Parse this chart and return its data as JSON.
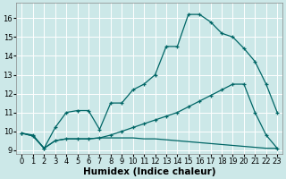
{
  "xlabel": "Humidex (Indice chaleur)",
  "background_color": "#cce8e8",
  "grid_color": "#ffffff",
  "line_color": "#006666",
  "xlim": [
    -0.5,
    23.5
  ],
  "ylim": [
    8.8,
    16.8
  ],
  "yticks": [
    9,
    10,
    11,
    12,
    13,
    14,
    15,
    16
  ],
  "xticks": [
    0,
    1,
    2,
    3,
    4,
    5,
    6,
    7,
    8,
    9,
    10,
    11,
    12,
    13,
    14,
    15,
    16,
    17,
    18,
    19,
    20,
    21,
    22,
    23
  ],
  "line1_x": [
    0,
    1,
    2,
    3,
    4,
    5,
    6,
    7,
    8,
    9,
    10,
    11,
    12,
    13,
    14,
    15,
    16,
    17,
    18,
    19,
    20,
    21,
    22,
    23
  ],
  "line1_y": [
    9.9,
    9.8,
    9.1,
    10.2,
    11.0,
    11.1,
    11.1,
    10.1,
    11.5,
    11.5,
    12.2,
    12.5,
    13.0,
    14.5,
    14.5,
    16.2,
    16.2,
    15.8,
    15.2,
    15.0,
    14.4,
    13.7,
    12.5,
    11.0
  ],
  "line2_x": [
    0,
    1,
    2,
    3,
    4,
    5,
    6,
    7,
    8,
    9,
    10,
    11,
    12,
    13,
    14,
    15,
    16,
    17,
    18,
    19,
    20,
    21,
    22,
    23
  ],
  "line2_y": [
    9.9,
    9.75,
    9.1,
    9.5,
    9.6,
    9.6,
    9.6,
    9.65,
    9.65,
    9.65,
    9.65,
    9.6,
    9.6,
    9.55,
    9.5,
    9.45,
    9.4,
    9.35,
    9.3,
    9.25,
    9.2,
    9.15,
    9.1,
    9.1
  ],
  "line3_x": [
    0,
    1,
    2,
    3,
    4,
    5,
    6,
    7,
    8,
    9,
    10,
    11,
    12,
    13,
    14,
    15,
    16,
    17,
    18,
    19,
    20,
    21,
    22,
    23
  ],
  "line3_y": [
    9.9,
    9.75,
    9.1,
    9.5,
    9.6,
    9.6,
    9.6,
    9.65,
    9.8,
    10.0,
    10.2,
    10.4,
    10.6,
    10.8,
    11.0,
    11.3,
    11.6,
    11.9,
    12.2,
    12.5,
    12.5,
    11.0,
    9.8,
    9.1
  ],
  "tick_fontsize": 6,
  "label_fontsize": 7.5
}
